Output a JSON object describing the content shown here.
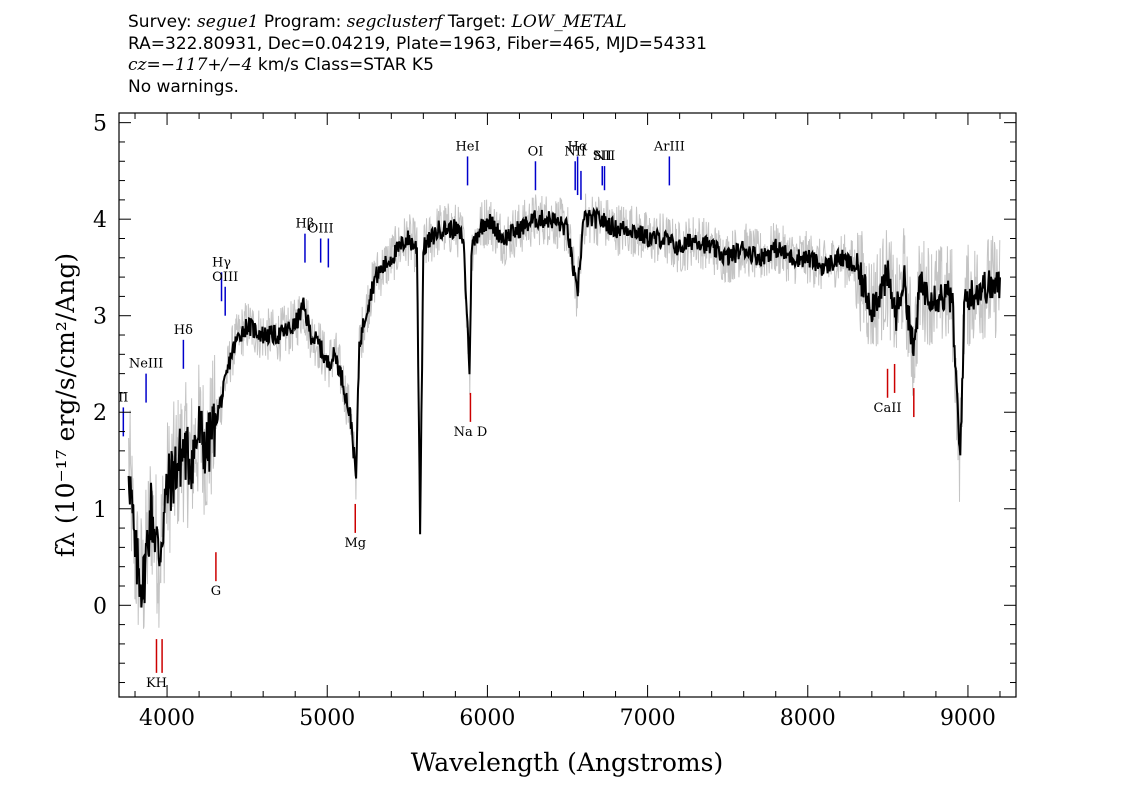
{
  "header": {
    "survey_label": "Survey: ",
    "survey": "segue1",
    "program_label": " Program: ",
    "program": "segclusterf",
    "target_label": " Target: ",
    "target": "LOW_METAL",
    "line2": "RA=322.80931, Dec=0.04219, Plate=1963, Fiber=465, MJD=54331",
    "cz": "cz=−117+/−4",
    "cz_rest": " km/s Class=STAR K5",
    "line4": "No warnings."
  },
  "chart_data": {
    "type": "line",
    "title": "",
    "xlabel": "Wavelength (Angstroms)",
    "ylabel": "fλ (10⁻¹⁷ erg/s/cm²/Ang)",
    "xlim": [
      3700,
      9300
    ],
    "ylim": [
      -0.95,
      5.1
    ],
    "xticks": [
      4000,
      5000,
      6000,
      7000,
      8000,
      9000
    ],
    "xtick_labels": [
      "4000",
      "5000",
      "6000",
      "7000",
      "8000",
      "9000"
    ],
    "yticks": [
      0,
      1,
      2,
      3,
      4,
      5
    ],
    "ytick_labels": [
      "0",
      "1",
      "2",
      "3",
      "4",
      "5"
    ],
    "grid": false,
    "series": [
      {
        "role": "flux",
        "color": "#000000",
        "x": [
          3760,
          3800,
          3850,
          3900,
          3950,
          4000,
          4050,
          4100,
          4150,
          4200,
          4250,
          4300,
          4350,
          4400,
          4450,
          4500,
          4600,
          4700,
          4800,
          4850,
          4900,
          4950,
          5000,
          5050,
          5100,
          5150,
          5180,
          5200,
          5250,
          5300,
          5400,
          5500,
          5560,
          5580,
          5600,
          5700,
          5800,
          5850,
          5890,
          5900,
          5950,
          6000,
          6100,
          6200,
          6300,
          6400,
          6500,
          6560,
          6600,
          6700,
          6800,
          6900,
          7000,
          7100,
          7200,
          7300,
          7400,
          7500,
          7600,
          7700,
          7800,
          7900,
          8000,
          8100,
          8200,
          8300,
          8400,
          8500,
          8550,
          8600,
          8660,
          8700,
          8800,
          8900,
          8950,
          8980,
          9000,
          9100,
          9200
        ],
        "y": [
          1.5,
          0.5,
          0.2,
          1.0,
          0.5,
          1.2,
          1.4,
          1.6,
          1.5,
          1.8,
          1.6,
          1.9,
          2.2,
          2.6,
          2.8,
          2.9,
          2.8,
          2.8,
          2.9,
          3.1,
          2.8,
          2.7,
          2.5,
          2.6,
          2.3,
          1.9,
          1.3,
          2.7,
          3.1,
          3.4,
          3.6,
          3.8,
          3.7,
          0.8,
          3.7,
          3.9,
          3.9,
          3.8,
          2.4,
          3.7,
          3.9,
          4.0,
          3.8,
          3.9,
          4.0,
          4.0,
          3.9,
          3.2,
          4.0,
          4.0,
          3.9,
          3.9,
          3.8,
          3.8,
          3.7,
          3.8,
          3.7,
          3.6,
          3.7,
          3.6,
          3.7,
          3.6,
          3.6,
          3.5,
          3.6,
          3.5,
          3.1,
          3.4,
          3.0,
          3.4,
          2.6,
          3.3,
          3.2,
          3.2,
          1.5,
          3.2,
          3.2,
          3.3,
          3.3
        ]
      },
      {
        "role": "noise",
        "color": "#c4c4c4",
        "x": [
          3760,
          3800,
          3850,
          3900,
          3950,
          4000,
          4050,
          4100,
          4150,
          4200,
          4250,
          4300,
          4350,
          4400,
          4450,
          4500,
          4600,
          4700,
          4800,
          4850,
          4900,
          4950,
          5000,
          5050,
          5100,
          5150,
          5180,
          5200,
          5250,
          5300,
          5400,
          5500,
          5560,
          5580,
          5600,
          5700,
          5800,
          5850,
          5890,
          5900,
          5950,
          6000,
          6100,
          6200,
          6300,
          6400,
          6500,
          6560,
          6600,
          6700,
          6800,
          6900,
          7000,
          7100,
          7200,
          7300,
          7400,
          7500,
          7600,
          7700,
          7800,
          7900,
          8000,
          8100,
          8200,
          8300,
          8400,
          8500,
          8550,
          8600,
          8660,
          8700,
          8800,
          8900,
          8950,
          8980,
          9000,
          9100,
          9200
        ],
        "y": [
          1.5,
          0.5,
          0.2,
          1.0,
          0.5,
          1.2,
          1.4,
          1.6,
          1.5,
          1.8,
          1.6,
          1.9,
          2.2,
          2.6,
          2.8,
          2.9,
          2.8,
          2.8,
          2.9,
          3.1,
          2.8,
          2.7,
          2.5,
          2.6,
          2.3,
          1.9,
          1.3,
          2.7,
          3.1,
          3.4,
          3.6,
          3.8,
          3.7,
          0.8,
          3.7,
          3.9,
          3.9,
          3.8,
          2.4,
          3.7,
          3.9,
          4.0,
          3.8,
          3.9,
          4.0,
          4.0,
          3.9,
          3.2,
          4.0,
          4.0,
          3.9,
          3.9,
          3.8,
          3.8,
          3.7,
          3.8,
          3.7,
          3.6,
          3.7,
          3.6,
          3.7,
          3.6,
          3.6,
          3.5,
          3.6,
          3.5,
          3.1,
          3.4,
          3.0,
          3.4,
          2.6,
          3.3,
          3.2,
          3.2,
          1.5,
          3.2,
          3.2,
          3.3,
          3.3
        ]
      }
    ],
    "emission_lines": [
      {
        "label": "NeIII",
        "x": 3869,
        "y1": 2.1,
        "y2": 2.4,
        "color": "#0000cc"
      },
      {
        "label": "II",
        "x": 3727,
        "y1": 1.75,
        "y2": 2.05,
        "color": "#0000cc"
      },
      {
        "label": "Hδ",
        "x": 4102,
        "y1": 2.45,
        "y2": 2.75,
        "color": "#0000cc"
      },
      {
        "label": "Hγ",
        "x": 4340,
        "y1": 3.15,
        "y2": 3.45,
        "color": "#0000cc"
      },
      {
        "label": "OIII",
        "x": 4363,
        "y1": 3.0,
        "y2": 3.3,
        "color": "#0000cc"
      },
      {
        "label": "Hβ",
        "x": 4861,
        "y1": 3.55,
        "y2": 3.85,
        "color": "#0000cc"
      },
      {
        "label": "OIII",
        "x": 4959,
        "y1": 3.55,
        "y2": 3.8,
        "color": "#0000cc"
      },
      {
        "label": "",
        "x": 5007,
        "y1": 3.5,
        "y2": 3.8,
        "color": "#0000cc"
      },
      {
        "label": "HeI",
        "x": 5876,
        "y1": 4.35,
        "y2": 4.65,
        "color": "#0000cc"
      },
      {
        "label": "OI",
        "x": 6300,
        "y1": 4.3,
        "y2": 4.6,
        "color": "#0000cc"
      },
      {
        "label": "NII",
        "x": 6548,
        "y1": 4.3,
        "y2": 4.6,
        "color": "#0000cc"
      },
      {
        "label": "Hα",
        "x": 6563,
        "y1": 4.25,
        "y2": 4.65,
        "color": "#0000cc"
      },
      {
        "label": "",
        "x": 6584,
        "y1": 4.2,
        "y2": 4.5,
        "color": "#0000cc"
      },
      {
        "label": "SII",
        "x": 6717,
        "y1": 4.35,
        "y2": 4.55,
        "color": "#0000cc"
      },
      {
        "label": "NII",
        "x": 6731,
        "y1": 4.3,
        "y2": 4.55,
        "color": "#0000cc"
      },
      {
        "label": "ArIII",
        "x": 7136,
        "y1": 4.35,
        "y2": 4.65,
        "color": "#0000cc"
      }
    ],
    "absorption_lines": [
      {
        "label": "KH",
        "x": 3934,
        "y1": -0.7,
        "y2": -0.35,
        "color": "#cc0000"
      },
      {
        "label": "",
        "x": 3969,
        "y1": -0.7,
        "y2": -0.35,
        "color": "#cc0000"
      },
      {
        "label": "G",
        "x": 4305,
        "y1": 0.25,
        "y2": 0.55,
        "color": "#cc0000"
      },
      {
        "label": "Mg",
        "x": 5175,
        "y1": 0.75,
        "y2": 1.05,
        "color": "#cc0000"
      },
      {
        "label": "Na D",
        "x": 5894,
        "y1": 1.9,
        "y2": 2.2,
        "color": "#cc0000"
      },
      {
        "label": "CaII",
        "x": 8498,
        "y1": 2.15,
        "y2": 2.45,
        "color": "#cc0000"
      },
      {
        "label": "",
        "x": 8542,
        "y1": 2.2,
        "y2": 2.5,
        "color": "#cc0000"
      },
      {
        "label": "",
        "x": 8662,
        "y1": 1.95,
        "y2": 2.25,
        "color": "#cc0000"
      }
    ]
  }
}
